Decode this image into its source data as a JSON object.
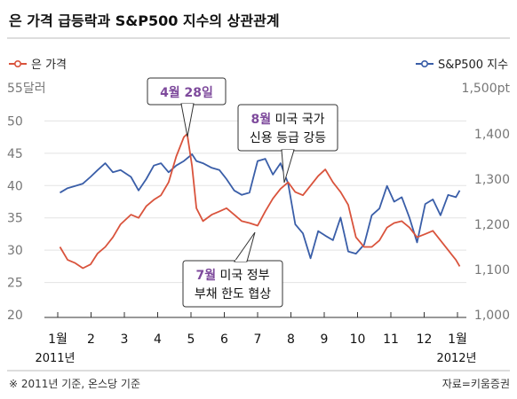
{
  "chart_data": {
    "type": "line",
    "title": "은 가격 급등락과 S&P500 지수의 상관관계",
    "legend": {
      "left": "은 가격",
      "right": "S&P500 지수"
    },
    "left_axis": {
      "unit_label": "55달러",
      "ticks": [
        "50",
        "45",
        "40",
        "35",
        "30",
        "25",
        "20"
      ],
      "ylim": [
        20,
        55
      ]
    },
    "right_axis": {
      "unit_label": "1,500pt",
      "ticks": [
        "1,400",
        "1,300",
        "1,200",
        "1,100",
        "1,000"
      ],
      "ylim": [
        1000,
        1500
      ]
    },
    "x_ticks": [
      "1월",
      "2",
      "3",
      "4",
      "5",
      "6",
      "7",
      "8",
      "9",
      "10",
      "11",
      "12",
      "1월"
    ],
    "x_start_year": "2011년",
    "x_end_year": "2012년",
    "colors": {
      "silver": "#d9533c",
      "sp500": "#3a5ea8"
    },
    "series": [
      {
        "name": "은 가격",
        "axis": "left",
        "x": [
          "2011-01-03",
          "2011-01-10",
          "2011-01-17",
          "2011-01-24",
          "2011-01-31",
          "2011-02-07",
          "2011-02-14",
          "2011-02-21",
          "2011-02-28",
          "2011-03-07",
          "2011-03-14",
          "2011-03-21",
          "2011-03-28",
          "2011-04-04",
          "2011-04-11",
          "2011-04-18",
          "2011-04-25",
          "2011-04-28",
          "2011-05-02",
          "2011-05-06",
          "2011-05-12",
          "2011-05-20",
          "2011-05-27",
          "2011-06-03",
          "2011-06-10",
          "2011-06-17",
          "2011-06-24",
          "2011-07-01",
          "2011-07-08",
          "2011-07-15",
          "2011-07-22",
          "2011-07-29",
          "2011-08-05",
          "2011-08-12",
          "2011-08-19",
          "2011-08-26",
          "2011-09-02",
          "2011-09-09",
          "2011-09-16",
          "2011-09-23",
          "2011-09-30",
          "2011-10-07",
          "2011-10-14",
          "2011-10-21",
          "2011-10-28",
          "2011-11-04",
          "2011-11-11",
          "2011-11-18",
          "2011-11-25",
          "2011-12-02",
          "2011-12-09",
          "2011-12-16",
          "2011-12-23",
          "2011-12-30",
          "2012-01-03"
        ],
        "values": [
          30.5,
          28.5,
          28.0,
          27.2,
          27.8,
          29.5,
          30.5,
          32.0,
          34.0,
          35.5,
          35.0,
          36.8,
          37.8,
          38.5,
          40.5,
          44.5,
          47.5,
          48.0,
          43.0,
          36.5,
          34.5,
          35.5,
          36.0,
          36.5,
          35.5,
          34.5,
          34.2,
          33.8,
          36.0,
          38.0,
          39.5,
          40.5,
          39.0,
          38.5,
          40.0,
          41.5,
          42.5,
          40.5,
          39.0,
          37.0,
          32.0,
          30.5,
          30.5,
          31.5,
          33.5,
          34.2,
          34.5,
          33.5,
          32.0,
          32.5,
          33.0,
          31.5,
          30.0,
          28.5,
          27.5
        ]
      },
      {
        "name": "S&P500 지수",
        "axis": "right",
        "x": [
          "2011-01-03",
          "2011-01-10",
          "2011-01-17",
          "2011-01-24",
          "2011-01-31",
          "2011-02-07",
          "2011-02-14",
          "2011-02-21",
          "2011-02-28",
          "2011-03-07",
          "2011-03-14",
          "2011-03-21",
          "2011-03-28",
          "2011-04-04",
          "2011-04-11",
          "2011-04-18",
          "2011-04-25",
          "2011-05-02",
          "2011-05-06",
          "2011-05-12",
          "2011-05-20",
          "2011-05-27",
          "2011-06-03",
          "2011-06-10",
          "2011-06-17",
          "2011-06-24",
          "2011-07-01",
          "2011-07-08",
          "2011-07-15",
          "2011-07-22",
          "2011-07-29",
          "2011-08-05",
          "2011-08-12",
          "2011-08-19",
          "2011-08-26",
          "2011-09-02",
          "2011-09-09",
          "2011-09-16",
          "2011-09-23",
          "2011-09-30",
          "2011-10-07",
          "2011-10-14",
          "2011-10-21",
          "2011-10-28",
          "2011-11-04",
          "2011-11-11",
          "2011-11-18",
          "2011-11-25",
          "2011-12-02",
          "2011-12-09",
          "2011-12-16",
          "2011-12-23",
          "2011-12-30",
          "2012-01-03"
        ],
        "values": [
          1270,
          1280,
          1285,
          1290,
          1305,
          1320,
          1335,
          1315,
          1320,
          1305,
          1275,
          1300,
          1330,
          1335,
          1315,
          1330,
          1340,
          1355,
          1340,
          1335,
          1325,
          1320,
          1300,
          1275,
          1265,
          1270,
          1340,
          1345,
          1310,
          1335,
          1290,
          1200,
          1180,
          1125,
          1185,
          1175,
          1165,
          1215,
          1140,
          1135,
          1155,
          1220,
          1235,
          1285,
          1250,
          1260,
          1215,
          1160,
          1245,
          1255,
          1220,
          1265,
          1260,
          1275
        ]
      }
    ],
    "annotations": [
      {
        "id": "apr28",
        "highlight": "4월 28일",
        "text": "",
        "text2": ""
      },
      {
        "id": "aug",
        "highlight": "8월",
        "text": " 미국 국가",
        "text2": "신용 등급 강등"
      },
      {
        "id": "jul",
        "highlight": "7월",
        "text": " 미국 정부",
        "text2": "부채 한도 협상"
      }
    ],
    "footnote": "※ 2011년 기준, 온스당 기준",
    "source": "자료=키움증권"
  }
}
